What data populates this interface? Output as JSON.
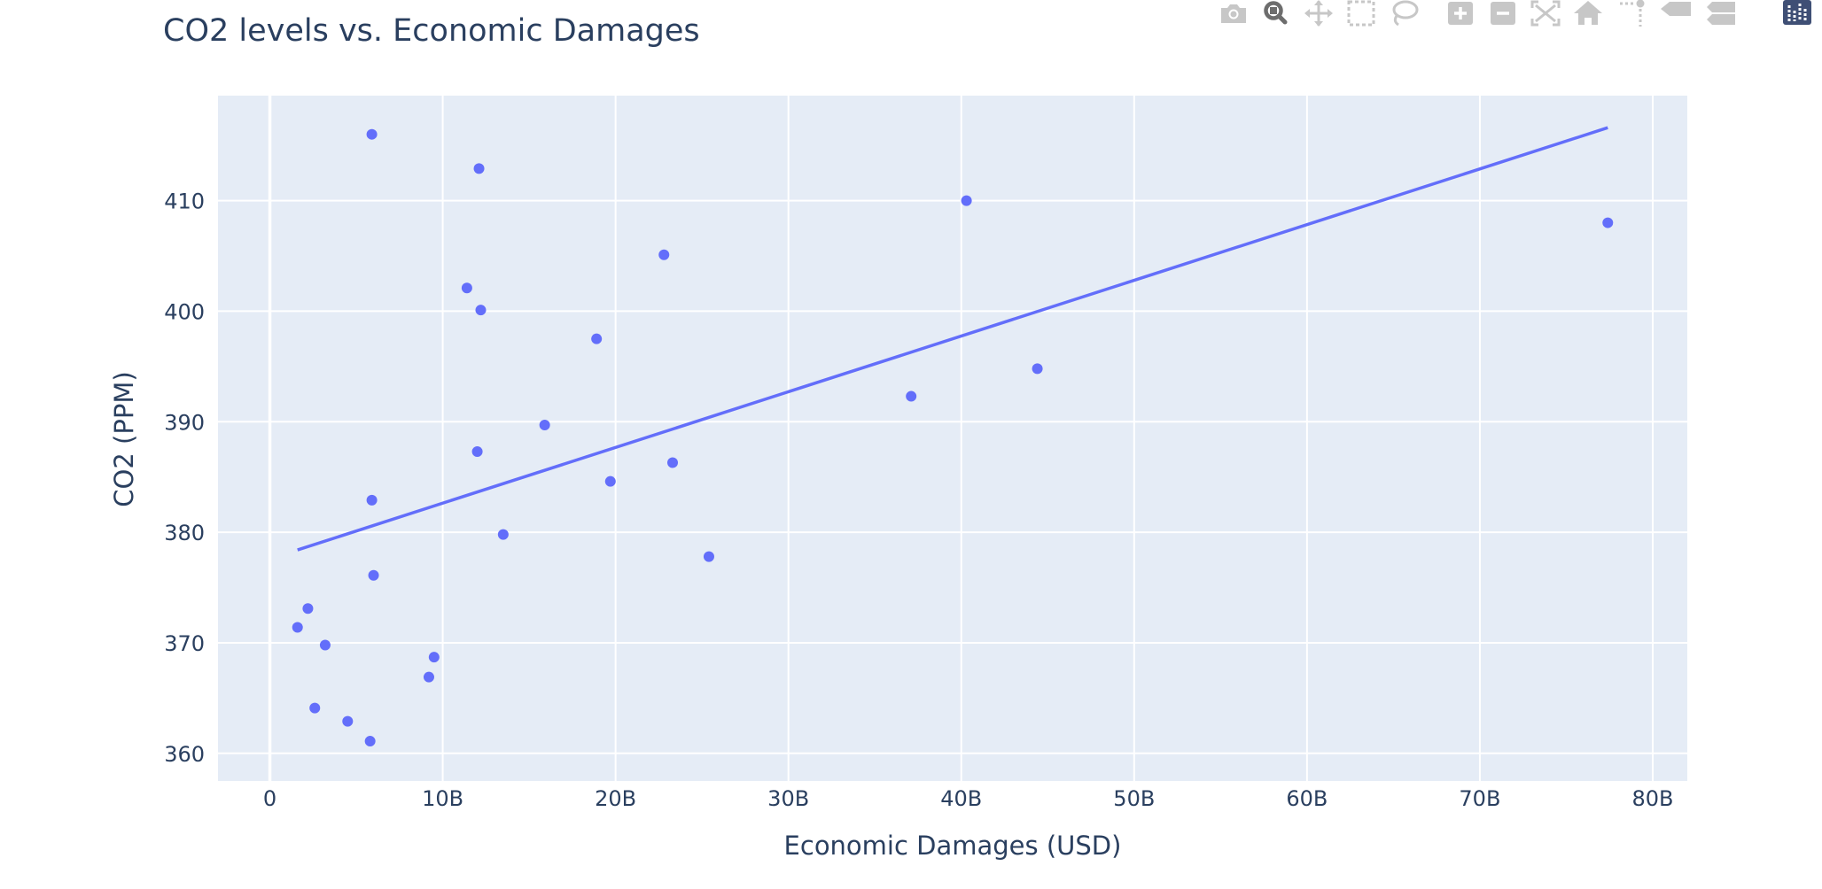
{
  "modebar": {
    "buttons": [
      {
        "name": "camera-icon",
        "active": false
      },
      {
        "name": "zoom-icon",
        "active": true
      },
      {
        "name": "pan-icon",
        "active": false
      },
      {
        "name": "box-select-icon",
        "active": false
      },
      {
        "name": "lasso-select-icon",
        "active": false
      },
      {
        "name": "zoom-in-icon",
        "active": false
      },
      {
        "name": "zoom-out-icon",
        "active": false
      },
      {
        "name": "autoscale-icon",
        "active": false
      },
      {
        "name": "home-icon",
        "active": false
      },
      {
        "name": "spike-lines-icon",
        "active": false
      },
      {
        "name": "hover-closest-icon",
        "active": false
      },
      {
        "name": "hover-compare-icon",
        "active": false
      },
      {
        "name": "plotly-logo-icon",
        "active": false
      }
    ],
    "icon_color": "#c7c7c7",
    "active_color": "#6d6d6d",
    "logo_color": "#3f4f75"
  },
  "chart_data": {
    "type": "scatter",
    "title": "CO2 levels vs. Economic Damages",
    "xlabel": "Economic Damages (USD)",
    "ylabel": "CO2 (PPM)",
    "xlim": [
      -3000000000,
      82000000000
    ],
    "ylim": [
      357.5,
      419.5
    ],
    "x_ticks": [
      0,
      10000000000,
      20000000000,
      30000000000,
      40000000000,
      50000000000,
      60000000000,
      70000000000,
      80000000000
    ],
    "x_tick_labels": [
      "0",
      "10B",
      "20B",
      "30B",
      "40B",
      "50B",
      "60B",
      "70B",
      "80B"
    ],
    "y_ticks": [
      360,
      370,
      380,
      390,
      400,
      410
    ],
    "y_tick_labels": [
      "360",
      "370",
      "380",
      "390",
      "400",
      "410"
    ],
    "grid": true,
    "colors": {
      "marker": "#636efa",
      "plot_bg": "#e5ecf6",
      "grid": "#ffffff",
      "text": "#2a3f5f"
    },
    "points": [
      {
        "x": 5900000000,
        "y": 416.0
      },
      {
        "x": 12100000000,
        "y": 412.9
      },
      {
        "x": 40300000000,
        "y": 410.0
      },
      {
        "x": 77400000000,
        "y": 408.0
      },
      {
        "x": 22800000000,
        "y": 405.1
      },
      {
        "x": 11400000000,
        "y": 402.1
      },
      {
        "x": 12200000000,
        "y": 400.1
      },
      {
        "x": 18900000000,
        "y": 397.5
      },
      {
        "x": 44400000000,
        "y": 394.8
      },
      {
        "x": 37100000000,
        "y": 392.3
      },
      {
        "x": 15900000000,
        "y": 389.7
      },
      {
        "x": 12000000000,
        "y": 387.3
      },
      {
        "x": 23300000000,
        "y": 386.3
      },
      {
        "x": 19700000000,
        "y": 384.6
      },
      {
        "x": 5900000000,
        "y": 382.9
      },
      {
        "x": 13500000000,
        "y": 379.8
      },
      {
        "x": 25400000000,
        "y": 377.8
      },
      {
        "x": 6000000000,
        "y": 376.1
      },
      {
        "x": 2200000000,
        "y": 373.1
      },
      {
        "x": 1600000000,
        "y": 371.4
      },
      {
        "x": 3200000000,
        "y": 369.8
      },
      {
        "x": 9500000000,
        "y": 368.7
      },
      {
        "x": 9200000000,
        "y": 366.9
      },
      {
        "x": 2600000000,
        "y": 364.1
      },
      {
        "x": 4500000000,
        "y": 362.9
      },
      {
        "x": 5800000000,
        "y": 361.1
      }
    ],
    "trendline": {
      "x": [
        1600000000,
        77400000000
      ],
      "y": [
        378.4,
        416.6
      ]
    }
  }
}
